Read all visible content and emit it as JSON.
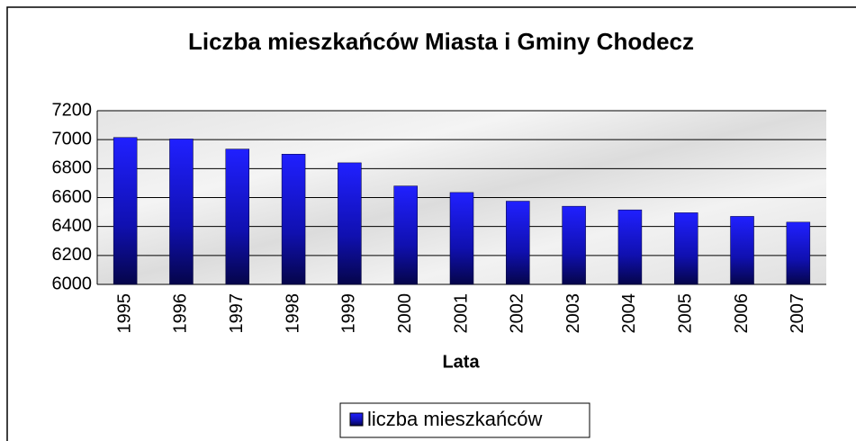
{
  "chart_data": {
    "type": "bar",
    "title": "Liczba mieszkańców Miasta i Gminy Chodecz",
    "x_label": "Lata",
    "categories": [
      "1995",
      "1996",
      "1997",
      "1998",
      "1999",
      "2000",
      "2001",
      "2002",
      "2003",
      "2004",
      "2005",
      "2006",
      "2007"
    ],
    "series": [
      {
        "name": "liczba mieszkańców",
        "color": "#1a1aff",
        "values": [
          7015,
          7005,
          6935,
          6900,
          6840,
          6680,
          6635,
          6575,
          6540,
          6515,
          6495,
          6470,
          6430
        ]
      }
    ],
    "ylim": [
      6000,
      7200
    ],
    "yticks": [
      6000,
      6200,
      6400,
      6600,
      6800,
      7000,
      7200
    ],
    "grid": true,
    "legend": "bottom"
  }
}
